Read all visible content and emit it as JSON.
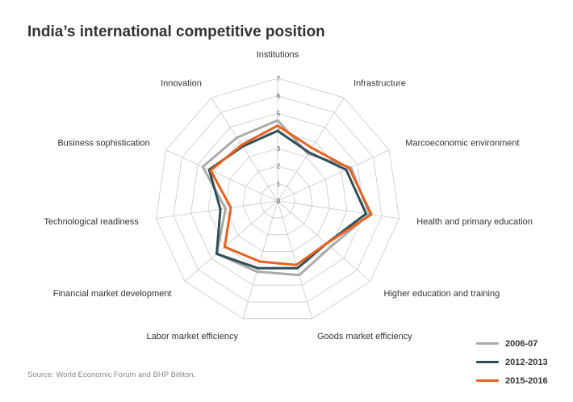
{
  "title": "India’s international competitive position",
  "source": "Source: World Economic Forum and BHP Billiton.",
  "chart_data": {
    "type": "radar",
    "title": "India’s international competitive position",
    "categories": [
      "Institutions",
      "Infrastructure",
      "Marcoeconomic environment",
      "Health and primary education",
      "Higher education and training",
      "Goods market efficiency",
      "Labor market efficiency",
      "Financial market development",
      "Technological readiness",
      "Business sophistication",
      "Innovation"
    ],
    "scale": {
      "min": 0,
      "max": 7,
      "ticks": [
        "0",
        "1",
        "2",
        "3",
        "4",
        "5",
        "6",
        "7"
      ]
    },
    "grid": true,
    "legend_position": "bottom-right",
    "series": [
      {
        "name": "2006-07",
        "color": "#aaaaaa",
        "values": [
          4.6,
          3.2,
          4.6,
          5.3,
          4.0,
          4.4,
          4.2,
          4.6,
          3.0,
          4.7,
          4.3
        ]
      },
      {
        "name": "2012-2013",
        "color": "#2f4f57",
        "values": [
          4.0,
          3.3,
          4.3,
          5.1,
          3.7,
          4.0,
          4.0,
          4.6,
          3.3,
          4.3,
          3.7
        ]
      },
      {
        "name": "2015-2016",
        "color": "#e8611e",
        "values": [
          4.3,
          3.6,
          4.5,
          5.4,
          3.7,
          3.8,
          3.6,
          4.0,
          2.7,
          4.2,
          3.8
        ]
      }
    ]
  }
}
